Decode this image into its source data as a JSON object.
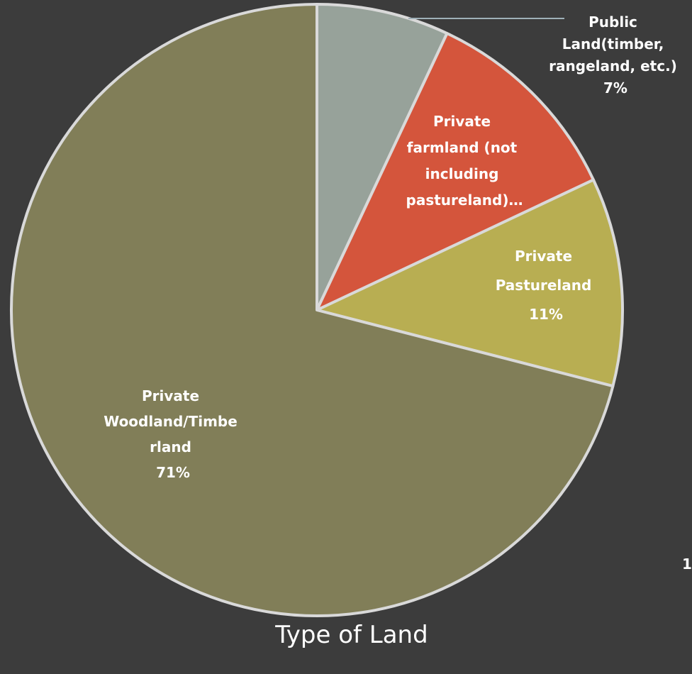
{
  "chart_data": {
    "type": "pie",
    "title": "Type of Land",
    "start_angle_deg": 0,
    "direction": "clockwise",
    "slices": [
      {
        "label_lines": [
          "Public",
          "Land(timber,",
          "rangeland, etc.)",
          "7%"
        ],
        "value": 7,
        "color": "#97a29a"
      },
      {
        "label_lines": [
          "Private",
          "farmland (not",
          "including",
          "pastureland)…"
        ],
        "value": 11,
        "color": "#d4553c"
      },
      {
        "label_lines": [
          "Private",
          "Pastureland",
          "11%"
        ],
        "value": 11,
        "color": "#b8ae52"
      },
      {
        "label_lines": [
          "Private",
          "Woodland/Timbe",
          "rland",
          "71%"
        ],
        "value": 71,
        "color": "#817e58"
      }
    ],
    "clipped_edge_text": "1"
  }
}
